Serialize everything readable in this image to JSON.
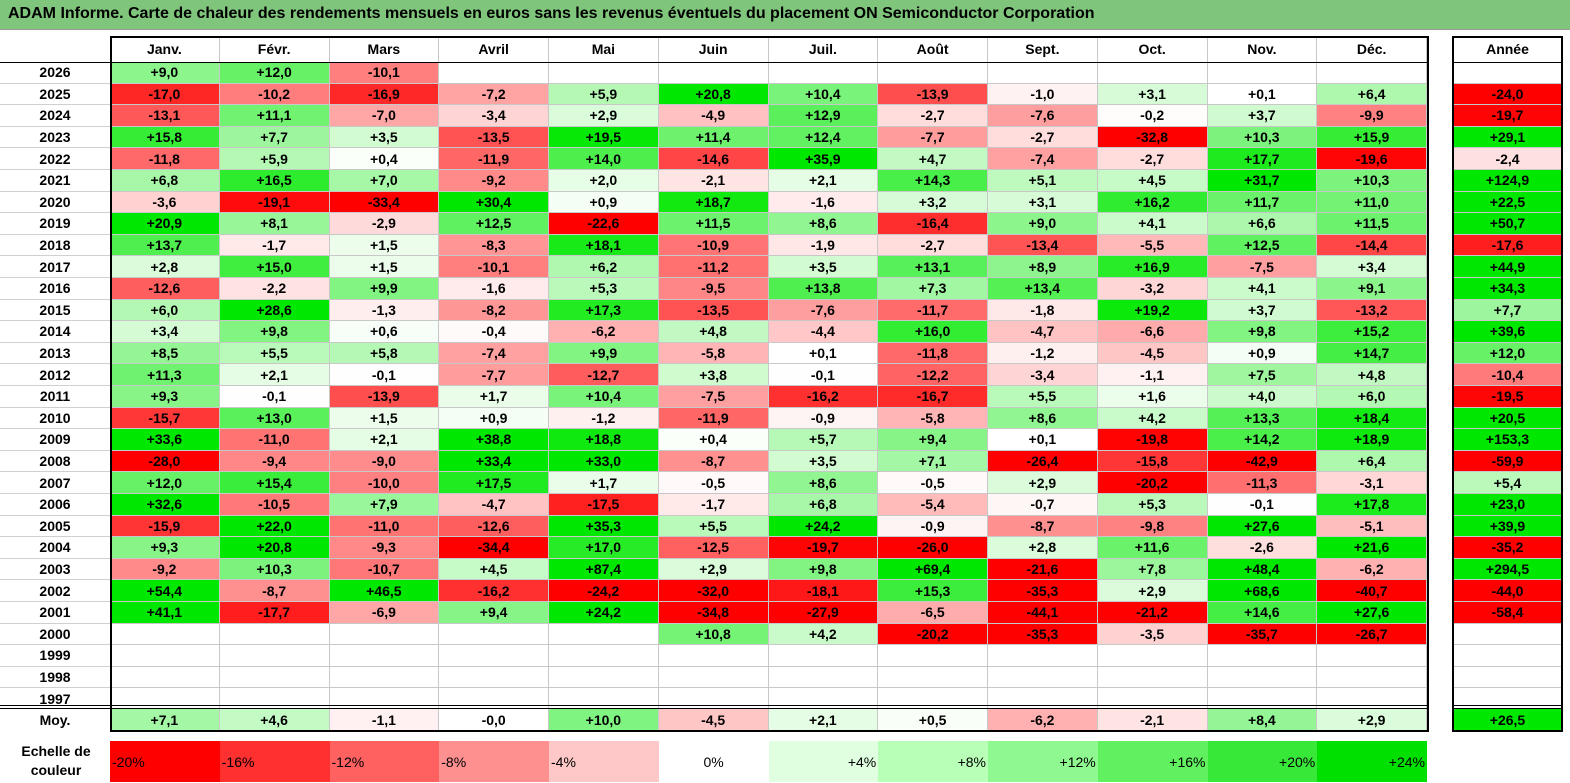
{
  "title": "ADAM Informe. Carte de chaleur des rendements mensuels en euros sans les revenus éventuels du placement ON Semiconductor Corporation",
  "chart_data": {
    "type": "heatmap",
    "title": "ADAM Informe. Carte de chaleur des rendements mensuels en euros sans les revenus éventuels du placement ON Semiconductor Corporation",
    "columns": [
      "Janv.",
      "Févr.",
      "Mars",
      "Avril",
      "Mai",
      "Juin",
      "Juil.",
      "Août",
      "Sept.",
      "Oct.",
      "Nov.",
      "Déc."
    ],
    "year_header": "Année",
    "rows": [
      {
        "year": "2026",
        "values": [
          "+9,0",
          "+12,0",
          "-10,1",
          "",
          "",
          "",
          "",
          "",
          "",
          "",
          "",
          ""
        ],
        "annual": ""
      },
      {
        "year": "2025",
        "values": [
          "-17,0",
          "-10,2",
          "-16,9",
          "-7,2",
          "+5,9",
          "+20,8",
          "+10,4",
          "-13,9",
          "-1,0",
          "+3,1",
          "+0,1",
          "+6,4"
        ],
        "annual": "-24,0"
      },
      {
        "year": "2024",
        "values": [
          "-13,1",
          "+11,1",
          "-7,0",
          "-3,4",
          "+2,9",
          "-4,9",
          "+12,9",
          "-2,7",
          "-7,6",
          "-0,2",
          "+3,7",
          "-9,9"
        ],
        "annual": "-19,7"
      },
      {
        "year": "2023",
        "values": [
          "+15,8",
          "+7,7",
          "+3,5",
          "-13,5",
          "+19,5",
          "+11,4",
          "+12,4",
          "-7,7",
          "-2,7",
          "-32,8",
          "+10,3",
          "+15,9"
        ],
        "annual": "+29,1"
      },
      {
        "year": "2022",
        "values": [
          "-11,8",
          "+5,9",
          "+0,4",
          "-11,9",
          "+14,0",
          "-14,6",
          "+35,9",
          "+4,7",
          "-7,4",
          "-2,7",
          "+17,7",
          "-19,6"
        ],
        "annual": "-2,4"
      },
      {
        "year": "2021",
        "values": [
          "+6,8",
          "+16,5",
          "+7,0",
          "-9,2",
          "+2,0",
          "-2,1",
          "+2,1",
          "+14,3",
          "+5,1",
          "+4,5",
          "+31,7",
          "+10,3"
        ],
        "annual": "+124,9"
      },
      {
        "year": "2020",
        "values": [
          "-3,6",
          "-19,1",
          "-33,4",
          "+30,4",
          "+0,9",
          "+18,7",
          "-1,6",
          "+3,2",
          "+3,1",
          "+16,2",
          "+11,7",
          "+11,0"
        ],
        "annual": "+22,5"
      },
      {
        "year": "2019",
        "values": [
          "+20,9",
          "+8,1",
          "-2,9",
          "+12,5",
          "-22,6",
          "+11,5",
          "+8,6",
          "-16,4",
          "+9,0",
          "+4,1",
          "+6,6",
          "+11,5"
        ],
        "annual": "+50,7"
      },
      {
        "year": "2018",
        "values": [
          "+13,7",
          "-1,7",
          "+1,5",
          "-8,3",
          "+18,1",
          "-10,9",
          "-1,9",
          "-2,7",
          "-13,4",
          "-5,5",
          "+12,5",
          "-14,4"
        ],
        "annual": "-17,6"
      },
      {
        "year": "2017",
        "values": [
          "+2,8",
          "+15,0",
          "+1,5",
          "-10,1",
          "+6,2",
          "-11,2",
          "+3,5",
          "+13,1",
          "+8,9",
          "+16,9",
          "-7,5",
          "+3,4"
        ],
        "annual": "+44,9"
      },
      {
        "year": "2016",
        "values": [
          "-12,6",
          "-2,2",
          "+9,9",
          "-1,6",
          "+5,3",
          "-9,5",
          "+13,8",
          "+7,3",
          "+13,4",
          "-3,2",
          "+4,1",
          "+9,1"
        ],
        "annual": "+34,3"
      },
      {
        "year": "2015",
        "values": [
          "+6,0",
          "+28,6",
          "-1,3",
          "-8,2",
          "+17,3",
          "-13,5",
          "-7,6",
          "-11,7",
          "-1,8",
          "+19,2",
          "+3,7",
          "-13,2"
        ],
        "annual": "+7,7"
      },
      {
        "year": "2014",
        "values": [
          "+3,4",
          "+9,8",
          "+0,6",
          "-0,4",
          "-6,2",
          "+4,8",
          "-4,4",
          "+16,0",
          "-4,7",
          "-6,6",
          "+9,8",
          "+15,2"
        ],
        "annual": "+39,6"
      },
      {
        "year": "2013",
        "values": [
          "+8,5",
          "+5,5",
          "+5,8",
          "-7,4",
          "+9,9",
          "-5,8",
          "+0,1",
          "-11,8",
          "-1,2",
          "-4,5",
          "+0,9",
          "+14,7"
        ],
        "annual": "+12,0"
      },
      {
        "year": "2012",
        "values": [
          "+11,3",
          "+2,1",
          "-0,1",
          "-7,7",
          "-12,7",
          "+3,8",
          "-0,1",
          "-12,2",
          "-3,4",
          "-1,1",
          "+7,5",
          "+4,8"
        ],
        "annual": "-10,4"
      },
      {
        "year": "2011",
        "values": [
          "+9,3",
          "-0,1",
          "-13,9",
          "+1,7",
          "+10,4",
          "-7,5",
          "-16,2",
          "-16,7",
          "+5,5",
          "+1,6",
          "+4,0",
          "+6,0"
        ],
        "annual": "-19,5"
      },
      {
        "year": "2010",
        "values": [
          "-15,7",
          "+13,0",
          "+1,5",
          "+0,9",
          "-1,2",
          "-11,9",
          "-0,9",
          "-5,8",
          "+8,6",
          "+4,2",
          "+13,3",
          "+18,4"
        ],
        "annual": "+20,5"
      },
      {
        "year": "2009",
        "values": [
          "+33,6",
          "-11,0",
          "+2,1",
          "+38,8",
          "+18,8",
          "+0,4",
          "+5,7",
          "+9,4",
          "+0,1",
          "-19,8",
          "+14,2",
          "+18,9"
        ],
        "annual": "+153,3"
      },
      {
        "year": "2008",
        "values": [
          "-28,0",
          "-9,4",
          "-9,0",
          "+33,4",
          "+33,0",
          "-8,7",
          "+3,5",
          "+7,1",
          "-26,4",
          "-15,8",
          "-42,9",
          "+6,4"
        ],
        "annual": "-59,9"
      },
      {
        "year": "2007",
        "values": [
          "+12,0",
          "+15,4",
          "-10,0",
          "+17,5",
          "+1,7",
          "-0,5",
          "+8,6",
          "-0,5",
          "+2,9",
          "-20,2",
          "-11,3",
          "-3,1"
        ],
        "annual": "+5,4"
      },
      {
        "year": "2006",
        "values": [
          "+32,6",
          "-10,5",
          "+7,9",
          "-4,7",
          "-17,5",
          "-1,7",
          "+6,8",
          "-5,4",
          "-0,7",
          "+5,3",
          "-0,1",
          "+17,8"
        ],
        "annual": "+23,0"
      },
      {
        "year": "2005",
        "values": [
          "-15,9",
          "+22,0",
          "-11,0",
          "-12,6",
          "+35,3",
          "+5,5",
          "+24,2",
          "-0,9",
          "-8,7",
          "-9,8",
          "+27,6",
          "-5,1"
        ],
        "annual": "+39,9"
      },
      {
        "year": "2004",
        "values": [
          "+9,3",
          "+20,8",
          "-9,3",
          "-34,4",
          "+17,0",
          "-12,5",
          "-19,7",
          "-26,0",
          "+2,8",
          "+11,6",
          "-2,6",
          "+21,6"
        ],
        "annual": "-35,2"
      },
      {
        "year": "2003",
        "values": [
          "-9,2",
          "+10,3",
          "-10,7",
          "+4,5",
          "+87,4",
          "+2,9",
          "+9,8",
          "+69,4",
          "-21,6",
          "+7,8",
          "+48,4",
          "-6,2"
        ],
        "annual": "+294,5"
      },
      {
        "year": "2002",
        "values": [
          "+54,4",
          "-8,7",
          "+46,5",
          "-16,2",
          "-24,2",
          "-32,0",
          "-18,1",
          "+15,3",
          "-35,3",
          "+2,9",
          "+68,6",
          "-40,7"
        ],
        "annual": "-44,0"
      },
      {
        "year": "2001",
        "values": [
          "+41,1",
          "-17,7",
          "-6,9",
          "+9,4",
          "+24,2",
          "-34,8",
          "-27,9",
          "-6,5",
          "-44,1",
          "-21,2",
          "+14,6",
          "+27,6"
        ],
        "annual": "-58,4"
      },
      {
        "year": "2000",
        "values": [
          "",
          "",
          "",
          "",
          "",
          "+10,8",
          "+4,2",
          "-20,2",
          "-35,3",
          "-3,5",
          "-35,7",
          "-26,7"
        ],
        "annual": ""
      },
      {
        "year": "1999",
        "values": [
          "",
          "",
          "",
          "",
          "",
          "",
          "",
          "",
          "",
          "",
          "",
          ""
        ],
        "annual": ""
      },
      {
        "year": "1998",
        "values": [
          "",
          "",
          "",
          "",
          "",
          "",
          "",
          "",
          "",
          "",
          "",
          ""
        ],
        "annual": ""
      },
      {
        "year": "1997",
        "values": [
          "",
          "",
          "",
          "",
          "",
          "",
          "",
          "",
          "",
          "",
          "",
          ""
        ],
        "annual": ""
      }
    ],
    "average": {
      "label": "Moy.",
      "values": [
        "+7,1",
        "+4,6",
        "-1,1",
        "-0,0",
        "+10,0",
        "-4,5",
        "+2,1",
        "+0,5",
        "-6,2",
        "-2,1",
        "+8,4",
        "+2,9"
      ],
      "annual": "+26,5"
    },
    "color_scale": {
      "label_line1": "Echelle de",
      "label_line2": "couleur",
      "steps": [
        {
          "label": "-20%",
          "color": "#ff0000"
        },
        {
          "label": "-16%",
          "color": "#ff3030"
        },
        {
          "label": "-12%",
          "color": "#ff6060"
        },
        {
          "label": "-8%",
          "color": "#ff9090"
        },
        {
          "label": "-4%",
          "color": "#ffc8c8"
        },
        {
          "label": "0%",
          "color": "#ffffff"
        },
        {
          "label": "+4%",
          "color": "#e0ffe0"
        },
        {
          "label": "+8%",
          "color": "#b8ffb8"
        },
        {
          "label": "+12%",
          "color": "#90f890"
        },
        {
          "label": "+16%",
          "color": "#60f060"
        },
        {
          "label": "+20%",
          "color": "#38e838"
        },
        {
          "label": "+24%",
          "color": "#00e000"
        }
      ]
    }
  }
}
